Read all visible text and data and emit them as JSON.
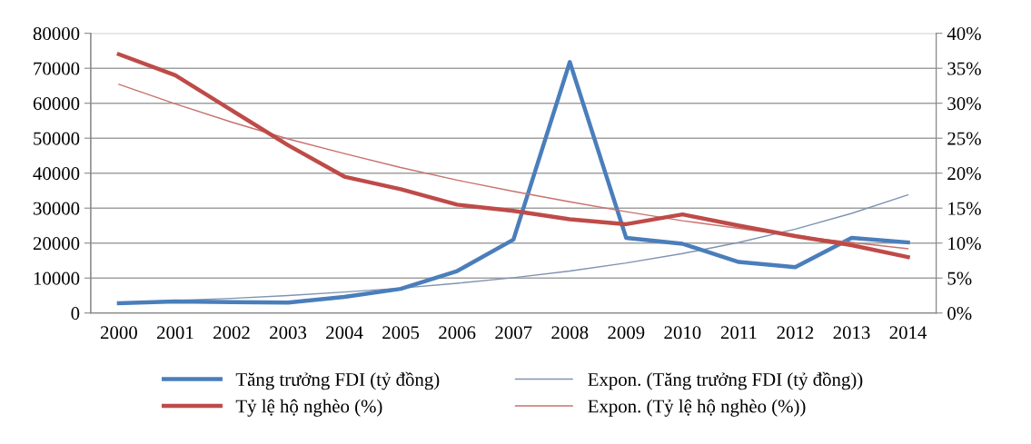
{
  "chart_data": {
    "type": "line",
    "categories": [
      "2000",
      "2001",
      "2002",
      "2003",
      "2004",
      "2005",
      "2006",
      "2007",
      "2008",
      "2009",
      "2010",
      "2011",
      "2012",
      "2013",
      "2014"
    ],
    "series": [
      {
        "name": "Tăng trưởng FDI (tỷ đồng)",
        "color": "#4a7ebb",
        "values": [
          2800,
          3300,
          3100,
          3000,
          4600,
          6900,
          12000,
          21000,
          71800,
          21500,
          19800,
          14600,
          13100,
          21500,
          20200
        ]
      },
      {
        "name": "Tỷ lệ hộ nghèo (%)",
        "color": "#be4b48",
        "axis": "y2",
        "values": [
          37,
          34,
          29,
          24,
          19.5,
          17.7,
          15.5,
          14.6,
          13.4,
          12.7,
          14.1,
          12.5,
          11.0,
          9.7,
          8.0
        ]
      },
      {
        "name": "Expon. (Tăng trưởng FDI (tỷ đồng))",
        "color": "#7f93b0",
        "values": [
          3000,
          3600,
          4200,
          5000,
          6000,
          7100,
          8500,
          10100,
          12000,
          14300,
          17000,
          20200,
          24000,
          28500,
          33800
        ]
      },
      {
        "name": "Expon. (Tỷ lệ hộ nghèo (%))",
        "color": "#c9716e",
        "axis": "y2",
        "values": [
          32.7,
          29.9,
          27.3,
          24.9,
          22.8,
          20.8,
          19.0,
          17.4,
          15.9,
          14.5,
          13.2,
          12.1,
          11.0,
          10.1,
          9.2
        ]
      }
    ],
    "ylim": [
      0,
      80000
    ],
    "yticks": [
      0,
      10000,
      20000,
      30000,
      40000,
      50000,
      60000,
      70000,
      80000
    ],
    "y2lim": [
      0,
      40
    ],
    "y2ticks": [
      {
        "value": 0,
        "label": "0%"
      },
      {
        "value": 5,
        "label": "5%"
      },
      {
        "value": 10,
        "label": "10%"
      },
      {
        "value": 15,
        "label": "15%"
      },
      {
        "value": 20,
        "label": "20%"
      },
      {
        "value": 25,
        "label": "25%"
      },
      {
        "value": 30,
        "label": "30%"
      },
      {
        "value": 35,
        "label": "35%"
      },
      {
        "value": 40,
        "label": "40%"
      }
    ],
    "grid": "y",
    "legend": "bottom",
    "marker": "none",
    "line_style": "solid"
  }
}
